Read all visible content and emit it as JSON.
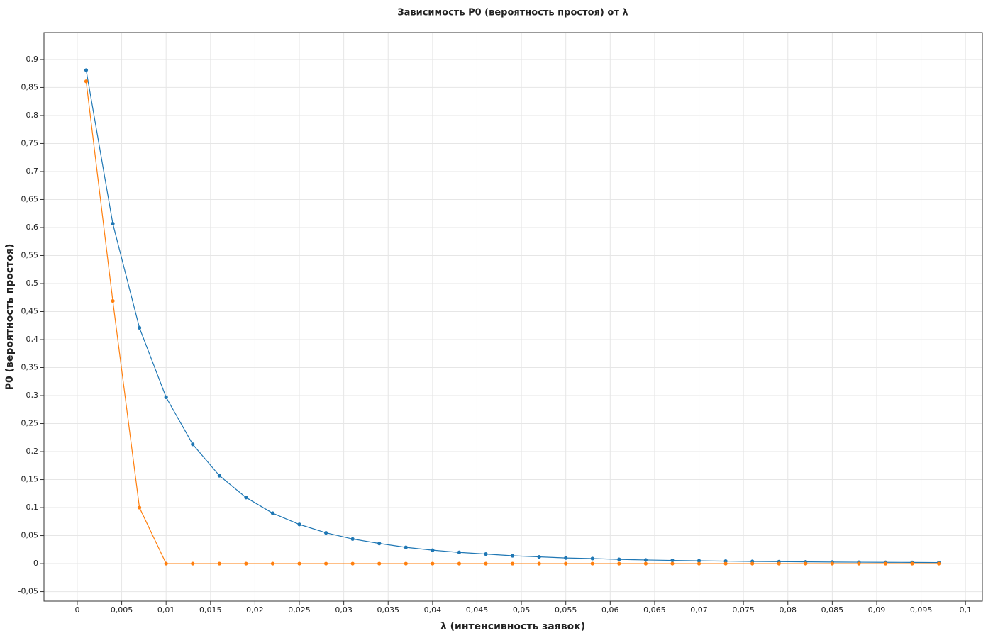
{
  "chart_data": {
    "type": "line",
    "title": "Зависимость P0 (вероятность простоя) от λ",
    "x_label": "λ (интенсивность заявок)",
    "y_label": "P0 (вероятность простоя)",
    "x": [
      0.001,
      0.004,
      0.007,
      0.01,
      0.013,
      0.016,
      0.019,
      0.022,
      0.025,
      0.028,
      0.031,
      0.034,
      0.037,
      0.04,
      0.043,
      0.046,
      0.049,
      0.052,
      0.055,
      0.058,
      0.061,
      0.064,
      0.067,
      0.07,
      0.073,
      0.076,
      0.079,
      0.082,
      0.085,
      0.088,
      0.091,
      0.094,
      0.097
    ],
    "series": [
      {
        "color": "#1f77b4",
        "values": [
          0.881,
          0.607,
          0.421,
          0.297,
          0.213,
          0.157,
          0.118,
          0.09,
          0.07,
          0.055,
          0.044,
          0.036,
          0.029,
          0.024,
          0.02,
          0.017,
          0.014,
          0.012,
          0.01,
          0.009,
          0.0075,
          0.0065,
          0.0057,
          0.005,
          0.0044,
          0.0039,
          0.0035,
          0.0031,
          0.0028,
          0.0025,
          0.0023,
          0.0021,
          0.0019
        ]
      },
      {
        "color": "#ff7f0e",
        "values": [
          0.861,
          0.469,
          0.1,
          0,
          0,
          0,
          0,
          0,
          0,
          0,
          0,
          0,
          0,
          0,
          0,
          0,
          0,
          0,
          0,
          0,
          0,
          0,
          0,
          0,
          0,
          0,
          0,
          0,
          0,
          0,
          0,
          0,
          0
        ]
      }
    ],
    "xlim": [
      -0.00375,
      0.1019
    ],
    "ylim": [
      -0.067,
      0.948
    ],
    "xticks": [
      0,
      {
        "value": 0.005,
        "label": "0,005"
      },
      {
        "value": 0.01,
        "label": "0,01"
      },
      {
        "value": 0.015,
        "label": "0,015"
      },
      {
        "value": 0.02,
        "label": "0,02"
      },
      {
        "value": 0.025,
        "label": "0,025"
      },
      {
        "value": 0.03,
        "label": "0,03"
      },
      {
        "value": 0.035,
        "label": "0,035"
      },
      {
        "value": 0.04,
        "label": "0,04"
      },
      {
        "value": 0.045,
        "label": "0,045"
      },
      {
        "value": 0.05,
        "label": "0,05"
      },
      {
        "value": 0.055,
        "label": "0,055"
      },
      {
        "value": 0.06,
        "label": "0,06"
      },
      {
        "value": 0.065,
        "label": "0,065"
      },
      {
        "value": 0.07,
        "label": "0,07"
      },
      {
        "value": 0.075,
        "label": "0,075"
      },
      {
        "value": 0.08,
        "label": "0,08"
      },
      {
        "value": 0.085,
        "label": "0,085"
      },
      {
        "value": 0.09,
        "label": "0,09"
      },
      {
        "value": 0.095,
        "label": "0,095"
      },
      {
        "value": 0.1,
        "label": "0,1"
      }
    ],
    "yticks": [
      {
        "value": -0.05,
        "label": "-0,05"
      },
      0,
      {
        "value": 0.05,
        "label": "0,05"
      },
      {
        "value": 0.1,
        "label": "0,1"
      },
      {
        "value": 0.15,
        "label": "0,15"
      },
      {
        "value": 0.2,
        "label": "0,2"
      },
      {
        "value": 0.25,
        "label": "0,25"
      },
      {
        "value": 0.3,
        "label": "0,3"
      },
      {
        "value": 0.35,
        "label": "0,35"
      },
      {
        "value": 0.4,
        "label": "0,4"
      },
      {
        "value": 0.45,
        "label": "0,45"
      },
      {
        "value": 0.5,
        "label": "0,5"
      },
      {
        "value": 0.55,
        "label": "0,55"
      },
      {
        "value": 0.6,
        "label": "0,6"
      },
      {
        "value": 0.65,
        "label": "0,65"
      },
      {
        "value": 0.7,
        "label": "0,7"
      },
      {
        "value": 0.75,
        "label": "0,75"
      },
      {
        "value": 0.8,
        "label": "0,8"
      },
      {
        "value": 0.85,
        "label": "0,85"
      },
      {
        "value": 0.9,
        "label": "0,9"
      }
    ],
    "grid": true
  }
}
